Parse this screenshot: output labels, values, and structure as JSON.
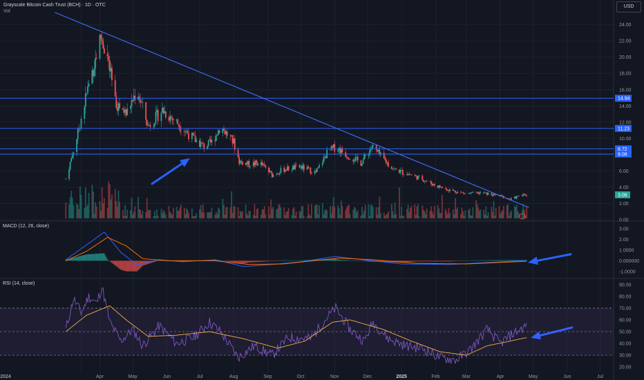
{
  "header": {
    "title": "Grayscale Bitcoin Cash Trust (BCH) · 1D · OTC",
    "vol_label": "Vol",
    "currency": "USD"
  },
  "colors": {
    "background": "#131722",
    "grid": "#1e222d",
    "up": "#26a69a",
    "down": "#ef5350",
    "hline": "#2962ff",
    "trendline": "#3d6bf0",
    "arrow": "#2962ff",
    "macd": "#2962ff",
    "signal": "#ff6d00",
    "rsi": "#7e57c2",
    "rsi_ma": "#f5b041"
  },
  "chart_data": [
    {
      "type": "candlestick",
      "pane": "price",
      "title": "Grayscale Bitcoin Cash Trust (BCH) · 1D · OTC",
      "y_ticks": [
        "24.00",
        "22.00",
        "20.00",
        "18.00",
        "16.00",
        "14.00",
        "12.00",
        "10.00",
        "8.00",
        "6.00",
        "4.00",
        "2.00",
        "0.00"
      ],
      "ylim": [
        0,
        25.5
      ],
      "x_ticks": [
        "2024",
        "Apr",
        "May",
        "Jun",
        "Jul",
        "Aug",
        "Sep",
        "Oct",
        "Nov",
        "Dec",
        "2025",
        "Feb",
        "Mar",
        "Apr",
        "May",
        "Jun",
        "Jul"
      ],
      "price_anchors": [
        {
          "date": "2024-03-01",
          "close": 5.0
        },
        {
          "date": "2024-03-10",
          "close": 9.5
        },
        {
          "date": "2024-03-20",
          "close": 15.5
        },
        {
          "date": "2024-04-02",
          "close": 22.5
        },
        {
          "date": "2024-04-08",
          "close": 20.0
        },
        {
          "date": "2024-04-15",
          "close": 14.5
        },
        {
          "date": "2024-04-25",
          "close": 13.0
        },
        {
          "date": "2024-05-05",
          "close": 16.0
        },
        {
          "date": "2024-05-15",
          "close": 11.5
        },
        {
          "date": "2024-05-28",
          "close": 13.5
        },
        {
          "date": "2024-06-10",
          "close": 12.0
        },
        {
          "date": "2024-06-25",
          "close": 10.0
        },
        {
          "date": "2024-07-05",
          "close": 9.0
        },
        {
          "date": "2024-07-12",
          "close": 9.5
        },
        {
          "date": "2024-07-20",
          "close": 11.5
        },
        {
          "date": "2024-08-01",
          "close": 9.5
        },
        {
          "date": "2024-08-06",
          "close": 7.2
        },
        {
          "date": "2024-08-15",
          "close": 6.8
        },
        {
          "date": "2024-08-25",
          "close": 7.0
        },
        {
          "date": "2024-09-05",
          "close": 5.5
        },
        {
          "date": "2024-09-15",
          "close": 6.2
        },
        {
          "date": "2024-10-01",
          "close": 6.5
        },
        {
          "date": "2024-10-15",
          "close": 5.8
        },
        {
          "date": "2024-10-25",
          "close": 8.2
        },
        {
          "date": "2024-11-02",
          "close": 9.0
        },
        {
          "date": "2024-11-12",
          "close": 8.0
        },
        {
          "date": "2024-11-25",
          "close": 7.0
        },
        {
          "date": "2024-12-05",
          "close": 9.0
        },
        {
          "date": "2024-12-15",
          "close": 7.5
        },
        {
          "date": "2024-12-25",
          "close": 6.2
        },
        {
          "date": "2025-01-10",
          "close": 5.5
        },
        {
          "date": "2025-01-20",
          "close": 5.0
        },
        {
          "date": "2025-02-01",
          "close": 4.2
        },
        {
          "date": "2025-02-15",
          "close": 3.6
        },
        {
          "date": "2025-03-01",
          "close": 3.2
        },
        {
          "date": "2025-03-15",
          "close": 3.3
        },
        {
          "date": "2025-04-01",
          "close": 2.9
        },
        {
          "date": "2025-04-10",
          "close": 2.5
        },
        {
          "date": "2025-04-20",
          "close": 3.0
        },
        {
          "date": "2025-04-25",
          "close": 3.06
        }
      ],
      "horizontal_levels": [
        14.94,
        11.23,
        8.72,
        8.08
      ],
      "horizontal_level_labels": [
        "14.94",
        "11.23",
        "8.72",
        "8.08"
      ],
      "trendline": [
        {
          "date": "2024-02-20",
          "price": 25.5
        },
        {
          "date": "2025-04-27",
          "price": 1.5
        }
      ],
      "last_price": 3.06,
      "last_price_label": "3.06"
    },
    {
      "type": "line",
      "pane": "macd",
      "title": "MACD (12, 26, close)",
      "y_ticks": [
        "3.00",
        "2.00",
        "1.0000",
        "0.000000",
        "-1.0000"
      ],
      "ylim": [
        -1.6,
        3.6
      ],
      "series": [
        {
          "name": "MACD",
          "values_anchor": [
            {
              "date": "2024-03-01",
              "v": 0.1
            },
            {
              "date": "2024-03-20",
              "v": 1.5
            },
            {
              "date": "2024-04-05",
              "v": 2.7
            },
            {
              "date": "2024-04-20",
              "v": 0.8
            },
            {
              "date": "2024-05-05",
              "v": -0.4
            },
            {
              "date": "2024-05-25",
              "v": 0.1
            },
            {
              "date": "2024-06-15",
              "v": -0.1
            },
            {
              "date": "2024-07-15",
              "v": 0.1
            },
            {
              "date": "2024-08-10",
              "v": -0.55
            },
            {
              "date": "2024-09-05",
              "v": -0.35
            },
            {
              "date": "2024-10-01",
              "v": -0.1
            },
            {
              "date": "2024-11-01",
              "v": 0.4
            },
            {
              "date": "2024-12-01",
              "v": 0.05
            },
            {
              "date": "2025-01-01",
              "v": -0.3
            },
            {
              "date": "2025-02-15",
              "v": -0.35
            },
            {
              "date": "2025-04-01",
              "v": -0.1
            },
            {
              "date": "2025-04-25",
              "v": 0.02
            }
          ]
        },
        {
          "name": "Signal",
          "values_anchor": [
            {
              "date": "2024-03-01",
              "v": 0.0
            },
            {
              "date": "2024-03-20",
              "v": 0.9
            },
            {
              "date": "2024-04-08",
              "v": 2.2
            },
            {
              "date": "2024-04-25",
              "v": 1.4
            },
            {
              "date": "2024-05-10",
              "v": 0.2
            },
            {
              "date": "2024-06-01",
              "v": 0.0
            },
            {
              "date": "2024-07-15",
              "v": 0.0
            },
            {
              "date": "2024-08-15",
              "v": -0.35
            },
            {
              "date": "2024-09-15",
              "v": -0.3
            },
            {
              "date": "2024-11-05",
              "v": 0.25
            },
            {
              "date": "2024-12-05",
              "v": 0.1
            },
            {
              "date": "2025-01-15",
              "v": -0.25
            },
            {
              "date": "2025-03-01",
              "v": -0.3
            },
            {
              "date": "2025-04-25",
              "v": -0.05
            }
          ]
        }
      ]
    },
    {
      "type": "line",
      "pane": "rsi",
      "title": "RSI (14, close)",
      "y_ticks": [
        "90.00",
        "80.00",
        "70.00",
        "60.00",
        "50.00",
        "40.00",
        "30.00",
        "20.00"
      ],
      "ylim": [
        16,
        94
      ],
      "bands": [
        70,
        50,
        30
      ],
      "series": [
        {
          "name": "RSI",
          "values_anchor": [
            {
              "date": "2024-03-01",
              "v": 52
            },
            {
              "date": "2024-03-08",
              "v": 78
            },
            {
              "date": "2024-03-15",
              "v": 66
            },
            {
              "date": "2024-03-22",
              "v": 80
            },
            {
              "date": "2024-03-29",
              "v": 74
            },
            {
              "date": "2024-04-03",
              "v": 88
            },
            {
              "date": "2024-04-10",
              "v": 58
            },
            {
              "date": "2024-04-20",
              "v": 42
            },
            {
              "date": "2024-05-01",
              "v": 52
            },
            {
              "date": "2024-05-10",
              "v": 38
            },
            {
              "date": "2024-05-25",
              "v": 55
            },
            {
              "date": "2024-06-10",
              "v": 40
            },
            {
              "date": "2024-06-25",
              "v": 45
            },
            {
              "date": "2024-07-10",
              "v": 58
            },
            {
              "date": "2024-07-20",
              "v": 50
            },
            {
              "date": "2024-08-05",
              "v": 28
            },
            {
              "date": "2024-08-20",
              "v": 38
            },
            {
              "date": "2024-09-05",
              "v": 30
            },
            {
              "date": "2024-09-20",
              "v": 45
            },
            {
              "date": "2024-10-10",
              "v": 44
            },
            {
              "date": "2024-10-25",
              "v": 62
            },
            {
              "date": "2024-11-02",
              "v": 70
            },
            {
              "date": "2024-11-15",
              "v": 52
            },
            {
              "date": "2024-11-28",
              "v": 42
            },
            {
              "date": "2024-12-06",
              "v": 58
            },
            {
              "date": "2024-12-20",
              "v": 44
            },
            {
              "date": "2025-01-05",
              "v": 38
            },
            {
              "date": "2025-01-20",
              "v": 36
            },
            {
              "date": "2025-02-05",
              "v": 28
            },
            {
              "date": "2025-02-20",
              "v": 26
            },
            {
              "date": "2025-03-05",
              "v": 35
            },
            {
              "date": "2025-03-20",
              "v": 52
            },
            {
              "date": "2025-04-01",
              "v": 40
            },
            {
              "date": "2025-04-12",
              "v": 48
            },
            {
              "date": "2025-04-25",
              "v": 55
            }
          ]
        },
        {
          "name": "RSI-based MA",
          "values_anchor": [
            {
              "date": "2024-03-01",
              "v": 50
            },
            {
              "date": "2024-03-20",
              "v": 64
            },
            {
              "date": "2024-04-10",
              "v": 72
            },
            {
              "date": "2024-04-25",
              "v": 60
            },
            {
              "date": "2024-05-15",
              "v": 46
            },
            {
              "date": "2024-06-10",
              "v": 47
            },
            {
              "date": "2024-07-10",
              "v": 50
            },
            {
              "date": "2024-08-10",
              "v": 44
            },
            {
              "date": "2024-09-10",
              "v": 36
            },
            {
              "date": "2024-10-05",
              "v": 42
            },
            {
              "date": "2024-10-30",
              "v": 58
            },
            {
              "date": "2024-11-15",
              "v": 60
            },
            {
              "date": "2024-12-15",
              "v": 52
            },
            {
              "date": "2025-01-10",
              "v": 42
            },
            {
              "date": "2025-02-05",
              "v": 33
            },
            {
              "date": "2025-03-01",
              "v": 30
            },
            {
              "date": "2025-03-20",
              "v": 38
            },
            {
              "date": "2025-04-10",
              "v": 42
            },
            {
              "date": "2025-04-25",
              "v": 45
            }
          ]
        }
      ]
    }
  ],
  "panes": {
    "macd_label": "MACD (12, 26, close)",
    "rsi_label": "RSI (14, close)"
  }
}
